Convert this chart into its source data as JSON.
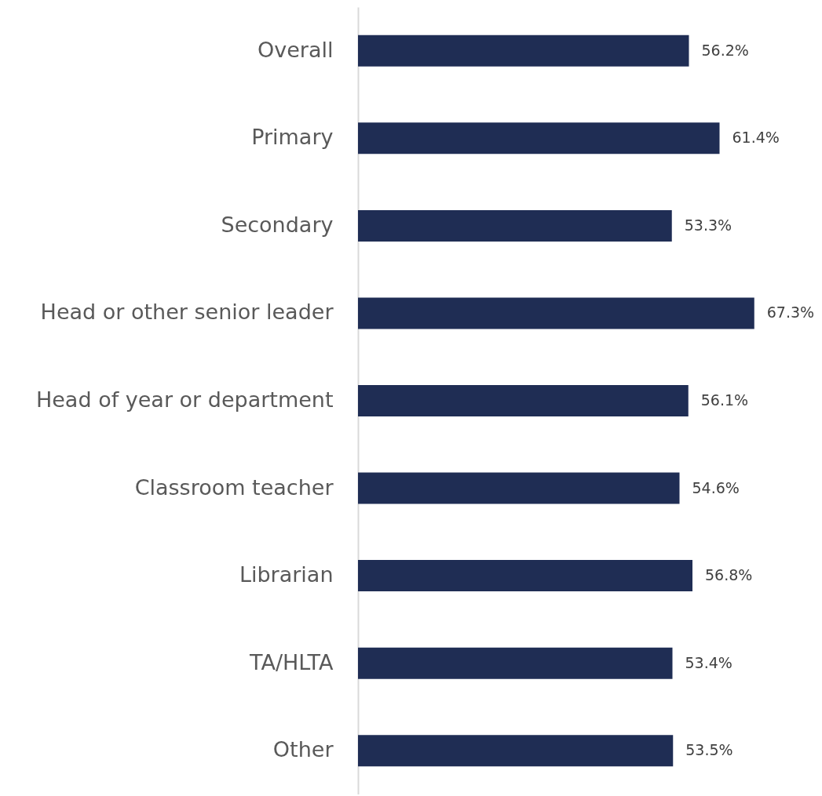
{
  "chart_data": {
    "type": "bar",
    "orientation": "horizontal",
    "categories": [
      "Overall",
      "Primary",
      "Secondary",
      "Head or other senior leader",
      "Head of year or department",
      "Classroom teacher",
      "Librarian",
      "TA/HLTA",
      "Other"
    ],
    "values": [
      56.2,
      61.4,
      53.3,
      67.3,
      56.1,
      54.6,
      56.8,
      53.4,
      53.5
    ],
    "value_labels": [
      "56.2%",
      "61.4%",
      "53.3%",
      "67.3%",
      "56.1%",
      "54.6%",
      "56.8%",
      "53.4%",
      "53.5%"
    ],
    "color": "#1f2d54",
    "xlim": [
      0,
      78
    ],
    "grid": false
  }
}
